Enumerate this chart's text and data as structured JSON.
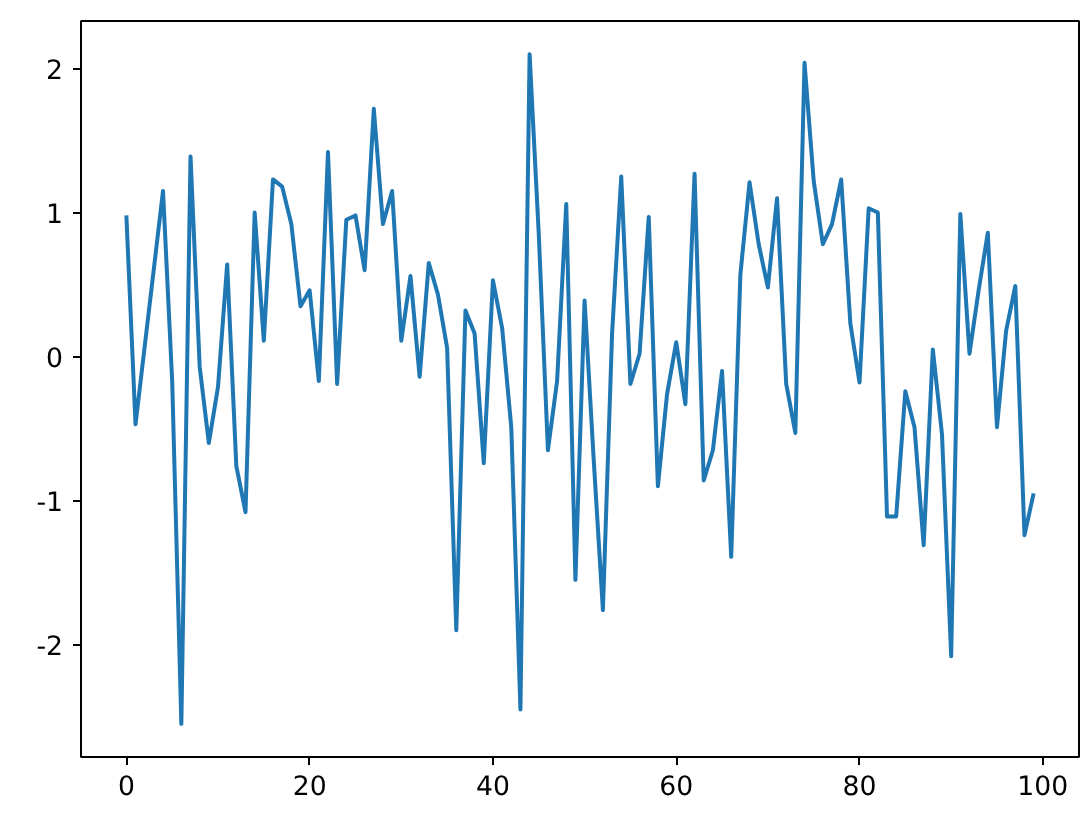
{
  "chart_data": {
    "type": "line",
    "x": [
      0,
      1,
      2,
      3,
      4,
      5,
      6,
      7,
      8,
      9,
      10,
      11,
      12,
      13,
      14,
      15,
      16,
      17,
      18,
      19,
      20,
      21,
      22,
      23,
      24,
      25,
      26,
      27,
      28,
      29,
      30,
      31,
      32,
      33,
      34,
      35,
      36,
      37,
      38,
      39,
      40,
      41,
      42,
      43,
      44,
      45,
      46,
      47,
      48,
      49,
      50,
      51,
      52,
      53,
      54,
      55,
      56,
      57,
      58,
      59,
      60,
      61,
      62,
      63,
      64,
      65,
      66,
      67,
      68,
      69,
      70,
      71,
      72,
      73,
      74,
      75,
      76,
      77,
      78,
      79,
      80,
      81,
      82,
      83,
      84,
      85,
      86,
      87,
      88,
      89,
      90,
      91,
      92,
      93,
      94,
      95,
      96,
      97,
      98,
      99
    ],
    "series": [
      {
        "color": "#1f77b4",
        "values": [
          0.98,
          -0.47,
          0.07,
          0.61,
          1.15,
          -0.17,
          -2.55,
          1.39,
          -0.07,
          -0.6,
          -0.21,
          0.64,
          -0.76,
          -1.08,
          1.0,
          0.11,
          1.23,
          1.18,
          0.92,
          0.35,
          0.46,
          -0.17,
          1.42,
          -0.19,
          0.95,
          0.98,
          0.6,
          1.72,
          0.92,
          1.15,
          0.11,
          0.56,
          -0.14,
          0.65,
          0.43,
          0.06,
          -1.9,
          0.32,
          0.16,
          -0.74,
          0.53,
          0.2,
          -0.49,
          -2.45,
          2.1,
          0.85,
          -0.65,
          -0.17,
          1.06,
          -1.55,
          0.39,
          -0.72,
          -1.76,
          0.16,
          1.25,
          -0.19,
          0.02,
          0.97,
          -0.9,
          -0.26,
          0.1,
          -0.33,
          1.27,
          -0.86,
          -0.65,
          -0.1,
          -1.39,
          0.57,
          1.21,
          0.78,
          0.48,
          1.1,
          -0.19,
          -0.53,
          2.04,
          1.22,
          0.78,
          0.92,
          1.23,
          0.23,
          -0.18,
          1.03,
          1.0,
          -1.11,
          -1.11,
          -0.24,
          -0.49,
          -1.31,
          0.05,
          -0.54,
          -2.08,
          0.99,
          0.02,
          0.46,
          0.86,
          -0.49,
          0.18,
          0.49,
          -1.24,
          -0.95
        ]
      }
    ],
    "xlim": [
      -4.95,
      103.95
    ],
    "ylim": [
      -2.78,
      2.33
    ],
    "xticks": [
      0,
      20,
      40,
      60,
      80,
      100
    ],
    "yticks": [
      -2,
      -1,
      0,
      1,
      2
    ],
    "grid": false,
    "line_style": "solid",
    "marker": "none"
  }
}
